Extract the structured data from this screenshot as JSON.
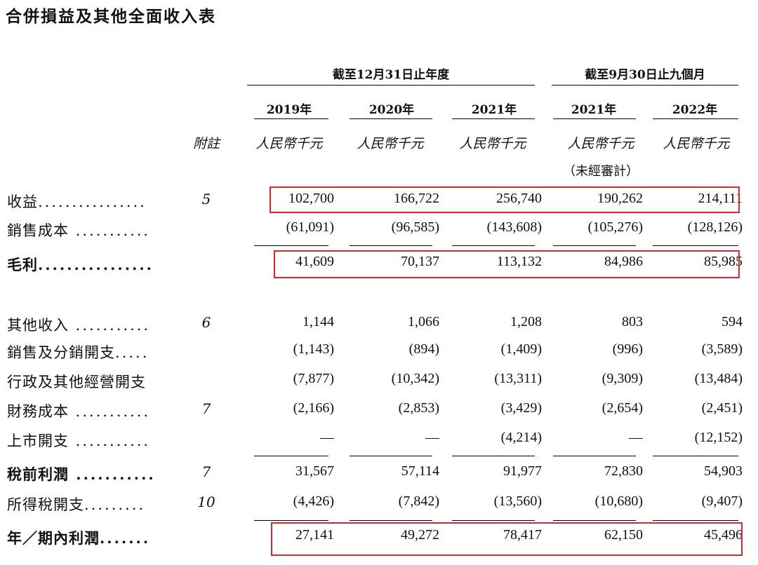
{
  "title": "合併損益及其他全面收入表",
  "periods": [
    {
      "label": "截至12月31日止年度"
    },
    {
      "label": "截至9月30日止九個月"
    }
  ],
  "years": [
    "2019年",
    "2020年",
    "2021年",
    "2021年",
    "2022年"
  ],
  "note_header": "附註",
  "unit": "人民幣千元",
  "unaudited": "（未經審計）",
  "rows": [
    {
      "label": "收益",
      "dots": "................",
      "note": "5",
      "values": [
        "102,700",
        "166,722",
        "256,740",
        "190,262",
        "214,111"
      ],
      "bold": false
    },
    {
      "label": "銷售成本",
      "dots": " ...........",
      "note": "",
      "values": [
        "(61,091)",
        "(96,585)",
        "(143,608)",
        "(105,276)",
        "(128,126)"
      ],
      "bold": false
    },
    {
      "label": "毛利",
      "dots": "................",
      "note": "",
      "values": [
        "41,609",
        "70,137",
        "113,132",
        "84,986",
        "85,985"
      ],
      "bold": true
    },
    {
      "label": "其他收入",
      "dots": " ...........",
      "note": "6",
      "values": [
        "1,144",
        "1,066",
        "1,208",
        "803",
        "594"
      ],
      "bold": false
    },
    {
      "label": "銷售及分銷開支",
      "dots": ".....",
      "note": "",
      "values": [
        "(1,143)",
        "(894)",
        "(1,409)",
        "(996)",
        "(3,589)"
      ],
      "bold": false
    },
    {
      "label": "行政及其他經營開支",
      "dots": "",
      "note": "",
      "values": [
        "(7,877)",
        "(10,342)",
        "(13,311)",
        "(9,309)",
        "(13,484)"
      ],
      "bold": false
    },
    {
      "label": "財務成本",
      "dots": " ...........",
      "note": "7",
      "values": [
        "(2,166)",
        "(2,853)",
        "(3,429)",
        "(2,654)",
        "(2,451)"
      ],
      "bold": false
    },
    {
      "label": "上市開支",
      "dots": " ...........",
      "note": "",
      "values": [
        "—",
        "—",
        "(4,214)",
        "—",
        "(12,152)"
      ],
      "bold": false
    },
    {
      "label": "稅前利潤",
      "dots": " ...........",
      "note": "7",
      "values": [
        "31,567",
        "57,114",
        "91,977",
        "72,830",
        "54,903"
      ],
      "bold": true
    },
    {
      "label": "所得稅開支",
      "dots": ".........",
      "note": "10",
      "values": [
        "(4,426)",
        "(7,842)",
        "(13,560)",
        "(10,680)",
        "(9,407)"
      ],
      "bold": false
    },
    {
      "label": "年／期內利潤",
      "dots": ".......",
      "note": "",
      "values": [
        "27,141",
        "49,272",
        "78,417",
        "62,150",
        "45,496"
      ],
      "bold": true
    }
  ]
}
